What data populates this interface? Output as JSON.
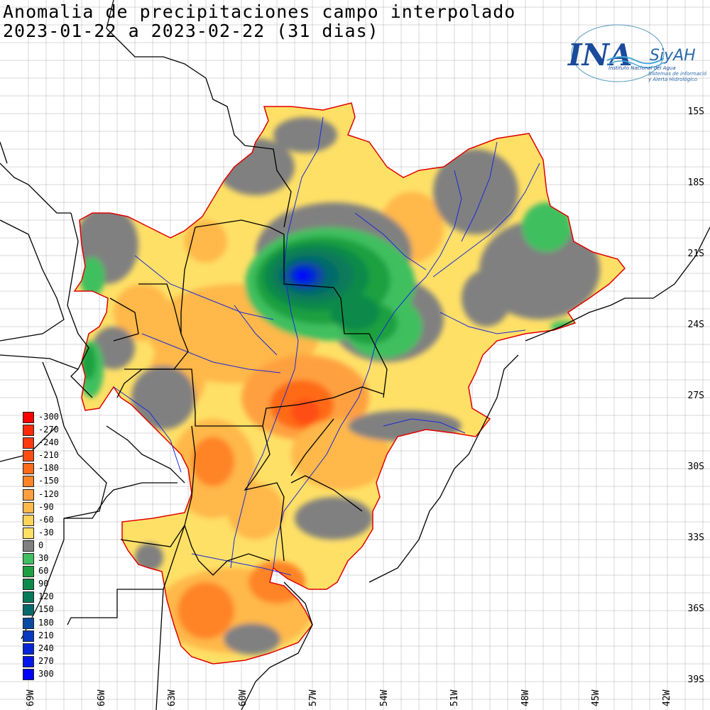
{
  "title": {
    "line1": "Anomalia de precipitaciones campo interpolado",
    "line2": "2023-01-22 a 2023-02-22 (31 dias)"
  },
  "logo": {
    "acronym": "INA",
    "product": "SiyAH",
    "org_name": "Instituto Nacional del Agua",
    "product_desc_1": "Sistemas de información",
    "product_desc_2": "y Alerta Hidrológico"
  },
  "latitude_labels": [
    "15S",
    "18S",
    "21S",
    "24S",
    "27S",
    "30S",
    "33S",
    "36S",
    "39S"
  ],
  "longitude_labels": [
    "69W",
    "66W",
    "63W",
    "60W",
    "57W",
    "54W",
    "51W",
    "48W",
    "45W",
    "42W"
  ],
  "legend": {
    "items": [
      {
        "label": "-300",
        "color": "#ff0000"
      },
      {
        "label": "-270",
        "color": "#ff2a0a"
      },
      {
        "label": "-240",
        "color": "#ff3a10"
      },
      {
        "label": "-210",
        "color": "#ff4d14"
      },
      {
        "label": "-180",
        "color": "#ff6a18"
      },
      {
        "label": "-150",
        "color": "#ff8426"
      },
      {
        "label": "-120",
        "color": "#ffa040"
      },
      {
        "label": "-90",
        "color": "#ffb84a"
      },
      {
        "label": "-60",
        "color": "#ffd25a"
      },
      {
        "label": "-30",
        "color": "#ffe066"
      },
      {
        "label": "0",
        "color": "#808080"
      },
      {
        "label": "30",
        "color": "#3fbf5f"
      },
      {
        "label": "60",
        "color": "#1fa040"
      },
      {
        "label": "90",
        "color": "#0d8a4a"
      },
      {
        "label": "120",
        "color": "#087a5a"
      },
      {
        "label": "150",
        "color": "#066a6a"
      },
      {
        "label": "180",
        "color": "#0a4aa0"
      },
      {
        "label": "210",
        "color": "#0838c0"
      },
      {
        "label": "240",
        "color": "#0626d8"
      },
      {
        "label": "270",
        "color": "#0418ec"
      },
      {
        "label": "300",
        "color": "#0000ff"
      }
    ]
  },
  "colors": {
    "basin_outline": "#e00000",
    "boundaries": "#000000",
    "rivers": "#1a2ad8",
    "graticule": "#b0b0b0"
  }
}
